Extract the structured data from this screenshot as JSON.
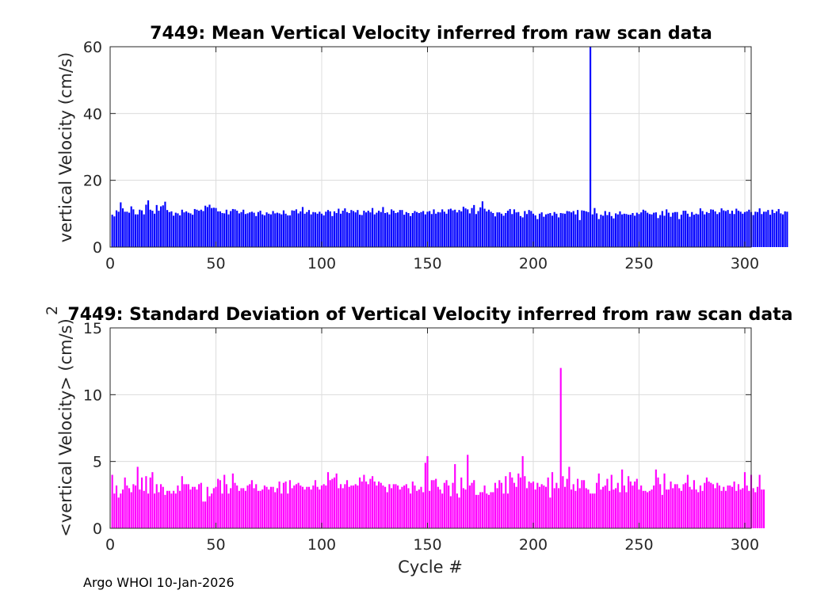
{
  "footer": "Argo WHOI 10-Jan-2026",
  "colors": {
    "top": "#0000ff",
    "bottom": "#ff00ff"
  },
  "chart_data": [
    {
      "type": "bar",
      "title": "7449: Mean Vertical Velocity inferred from raw scan data",
      "xlabel": "",
      "ylabel": "vertical Velocity (cm/s)",
      "xlim": [
        0,
        303
      ],
      "ylim": [
        0,
        60
      ],
      "xticks": [
        0,
        50,
        100,
        150,
        200,
        250,
        300
      ],
      "yticks": [
        0,
        20,
        40,
        60
      ],
      "color": "#0000ff",
      "x_start": 1,
      "values": [
        9.7,
        9.2,
        11.0,
        10.6,
        13.4,
        11.6,
        10.6,
        10.6,
        10.3,
        12.2,
        11.3,
        9.8,
        9.8,
        11.2,
        11.0,
        9.8,
        12.7,
        14.0,
        11.2,
        10.9,
        10.0,
        12.6,
        10.9,
        12.2,
        12.5,
        13.6,
        11.1,
        10.5,
        10.7,
        9.4,
        10.3,
        10.1,
        9.5,
        11.2,
        10.4,
        10.7,
        10.3,
        10.1,
        9.7,
        11.4,
        11.2,
        10.9,
        11.2,
        10.8,
        12.4,
        12.0,
        12.7,
        11.7,
        11.8,
        11.7,
        10.7,
        10.7,
        10.2,
        10.1,
        11.2,
        9.8,
        10.8,
        11.4,
        11.3,
        10.9,
        10.1,
        10.5,
        11.2,
        9.9,
        10.1,
        10.4,
        10.6,
        10.3,
        9.3,
        10.5,
        10.9,
        9.8,
        9.5,
        10.4,
        10.0,
        9.8,
        10.8,
        10.1,
        10.3,
        10.1,
        9.8,
        11.0,
        10.0,
        9.5,
        9.5,
        11.0,
        10.9,
        11.3,
        10.1,
        10.7,
        12.0,
        10.0,
        10.5,
        11.1,
        9.8,
        10.5,
        10.4,
        10.0,
        10.6,
        10.0,
        9.5,
        10.6,
        11.1,
        10.7,
        9.3,
        10.7,
        10.2,
        11.5,
        10.0,
        10.9,
        11.6,
        10.5,
        10.2,
        11.1,
        10.8,
        10.4,
        11.1,
        9.7,
        9.6,
        10.9,
        10.4,
        10.9,
        10.4,
        11.7,
        9.8,
        10.3,
        10.9,
        10.5,
        12.0,
        10.2,
        10.4,
        9.8,
        11.3,
        10.9,
        10.2,
        10.4,
        11.1,
        11.1,
        9.7,
        10.5,
        10.2,
        9.3,
        10.2,
        10.8,
        10.5,
        10.2,
        10.5,
        10.8,
        9.8,
        10.6,
        10.8,
        9.9,
        11.3,
        10.0,
        10.5,
        10.4,
        11.3,
        10.6,
        10.0,
        11.3,
        11.5,
        11.0,
        11.2,
        10.4,
        11.1,
        10.7,
        12.1,
        11.6,
        11.3,
        10.1,
        11.7,
        12.6,
        9.9,
        10.8,
        11.9,
        13.7,
        11.5,
        10.7,
        11.2,
        10.6,
        10.2,
        9.2,
        10.4,
        10.4,
        10.0,
        9.4,
        10.2,
        10.9,
        11.4,
        9.9,
        11.3,
        10.4,
        10.5,
        9.3,
        8.9,
        10.8,
        9.9,
        11.1,
        10.8,
        10.0,
        9.5,
        8.4,
        10.0,
        10.4,
        9.1,
        9.8,
        10.0,
        10.2,
        9.4,
        10.5,
        10.0,
        8.9,
        10.2,
        10.1,
        10.0,
        10.8,
        10.7,
        10.4,
        10.8,
        9.8,
        11.1,
        8.1,
        11.0,
        10.9,
        10.7,
        10.5,
        60.0,
        9.8,
        11.7,
        10.1,
        8.4,
        9.7,
        9.4,
        10.8,
        9.6,
        10.5,
        9.3,
        8.6,
        10.1,
        9.8,
        10.7,
        9.8,
        10.0,
        9.9,
        9.7,
        9.7,
        10.2,
        9.4,
        10.3,
        9.9,
        10.4,
        11.2,
        10.9,
        10.3,
        9.9,
        9.8,
        10.3,
        10.4,
        8.7,
        9.6,
        10.8,
        9.4,
        11.3,
        10.3,
        9.1,
        10.3,
        10.5,
        10.5,
        8.4,
        9.7,
        10.9,
        10.9,
        10.0,
        9.1,
        10.5,
        9.7,
        10.0,
        9.8,
        11.6,
        10.8,
        9.8,
        10.5,
        10.2,
        11.3,
        11.2,
        10.7,
        9.9,
        10.4,
        11.6,
        11.0,
        10.8,
        11.1,
        10.0,
        10.9,
        9.9,
        11.5,
        10.9,
        10.6,
        10.0,
        10.5,
        10.7,
        11.2,
        10.5,
        9.6,
        10.6,
        10.5,
        11.6,
        9.9,
        10.6,
        10.6,
        11.1,
        9.7,
        11.2,
        10.2,
        10.7,
        11.4,
        10.1,
        9.8,
        10.7,
        10.6
      ]
    },
    {
      "type": "bar",
      "title": "7449: Standard Deviation of Vertical Velocity inferred from raw scan data",
      "xlabel": "Cycle #",
      "ylabel": "<vertical Velocity> (cm/s)",
      "ylabel_superscript": "2",
      "xlim": [
        0,
        303
      ],
      "ylim": [
        0,
        15
      ],
      "xticks": [
        0,
        50,
        100,
        150,
        200,
        250,
        300
      ],
      "yticks": [
        0,
        5,
        10,
        15
      ],
      "color": "#ff00ff",
      "x_start": 1,
      "values": [
        4.0,
        2.6,
        3.2,
        2.3,
        2.6,
        2.9,
        3.8,
        3.2,
        3.0,
        2.7,
        3.3,
        3.2,
        4.6,
        2.9,
        3.8,
        2.8,
        3.9,
        2.6,
        3.8,
        4.2,
        2.6,
        3.3,
        2.7,
        3.3,
        3.1,
        2.5,
        2.8,
        2.8,
        2.6,
        2.8,
        2.6,
        3.2,
        2.8,
        3.9,
        3.3,
        3.3,
        3.3,
        2.9,
        3.1,
        3.1,
        2.9,
        3.3,
        3.4,
        2.0,
        2.0,
        3.1,
        2.4,
        2.6,
        3.0,
        3.1,
        3.7,
        3.6,
        2.6,
        4.0,
        3.3,
        2.6,
        3.0,
        4.1,
        3.4,
        3.2,
        2.8,
        3.0,
        3.0,
        2.8,
        3.2,
        3.3,
        3.6,
        3.0,
        3.3,
        2.8,
        2.8,
        2.9,
        3.2,
        3.1,
        2.9,
        3.1,
        3.1,
        2.7,
        3.0,
        3.5,
        2.6,
        3.4,
        3.5,
        2.6,
        3.6,
        3.0,
        3.2,
        3.3,
        3.4,
        3.2,
        3.1,
        2.9,
        3.1,
        3.1,
        2.9,
        3.2,
        3.6,
        3.1,
        2.9,
        3.2,
        3.3,
        3.2,
        4.2,
        3.6,
        3.7,
        3.8,
        4.1,
        3.0,
        3.3,
        3.0,
        3.3,
        3.6,
        3.1,
        3.2,
        3.2,
        3.3,
        3.2,
        3.8,
        3.5,
        4.0,
        3.5,
        3.3,
        3.7,
        3.9,
        3.5,
        3.2,
        3.5,
        3.4,
        3.2,
        3.1,
        2.7,
        3.3,
        3.0,
        3.3,
        3.3,
        3.2,
        2.9,
        3.1,
        3.2,
        3.3,
        3.0,
        2.6,
        3.5,
        3.2,
        2.8,
        2.9,
        3.1,
        2.7,
        4.9,
        5.4,
        2.8,
        3.6,
        3.6,
        3.7,
        3.1,
        2.9,
        2.6,
        3.4,
        3.6,
        3.2,
        2.4,
        3.4,
        4.8,
        2.6,
        2.3,
        3.8,
        3.0,
        2.9,
        5.5,
        3.2,
        3.4,
        3.6,
        2.5,
        2.5,
        2.7,
        2.7,
        3.2,
        2.6,
        2.5,
        2.7,
        2.7,
        3.4,
        3.0,
        3.6,
        3.4,
        2.6,
        3.9,
        2.6,
        4.2,
        3.8,
        3.4,
        3.1,
        4.1,
        3.8,
        5.4,
        3.9,
        3.0,
        3.5,
        3.4,
        3.5,
        2.9,
        3.4,
        3.1,
        3.3,
        3.2,
        3.1,
        3.8,
        2.3,
        4.2,
        3.0,
        3.4,
        3.0,
        12.0,
        3.9,
        3.1,
        3.7,
        4.6,
        2.9,
        3.3,
        2.8,
        3.7,
        3.0,
        3.6,
        3.6,
        3.0,
        2.9,
        2.6,
        2.6,
        2.6,
        3.4,
        4.1,
        2.9,
        3.1,
        3.2,
        3.7,
        2.8,
        4.0,
        2.9,
        3.0,
        3.4,
        2.7,
        4.4,
        3.2,
        2.7,
        3.9,
        3.5,
        3.2,
        3.5,
        3.7,
        2.9,
        3.2,
        2.8,
        2.8,
        2.7,
        2.8,
        2.9,
        3.2,
        4.4,
        3.8,
        3.3,
        2.5,
        4.1,
        2.9,
        2.9,
        3.5,
        3.0,
        3.3,
        3.3,
        3.0,
        2.8,
        3.3,
        3.4,
        4.0,
        3.1,
        2.9,
        3.6,
        2.9,
        2.7,
        3.2,
        2.8,
        3.4,
        3.8,
        3.5,
        3.4,
        3.3,
        3.0,
        3.4,
        3.2,
        2.8,
        3.1,
        2.8,
        3.2,
        3.2,
        3.1,
        3.5,
        2.8,
        3.3,
        2.9,
        3.0,
        4.2,
        3.2,
        2.8,
        4.0,
        3.0,
        2.7,
        3.1,
        4.0,
        2.9,
        2.9
      ]
    }
  ]
}
